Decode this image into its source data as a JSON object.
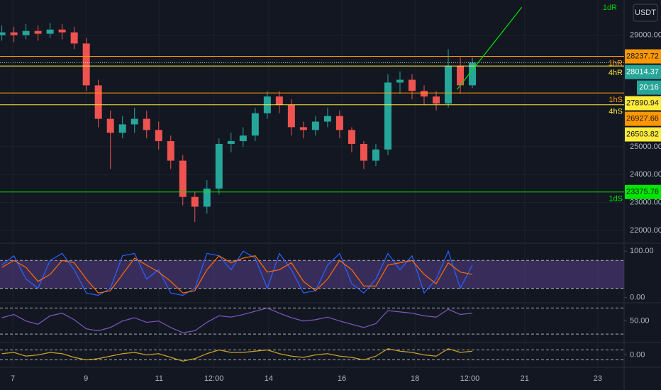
{
  "chart_data": [
    {
      "type": "candlestick",
      "currency": "USDT",
      "top_label": "1dR",
      "countdown": "20:16",
      "x": [
        6.7,
        7.03,
        7.36,
        7.69,
        8.02,
        8.35,
        8.68,
        9.01,
        9.34,
        9.67,
        10,
        10.33,
        10.66,
        10.99,
        11.32,
        11.65,
        11.98,
        12.31,
        12.64,
        12.97,
        13.3,
        13.63,
        13.96,
        14.29,
        14.62,
        14.95,
        15.28,
        15.61,
        15.94,
        16.27,
        16.6,
        16.93,
        17.26,
        17.59,
        17.92,
        18.25,
        18.58,
        18.91,
        19.24,
        19.57
      ],
      "open": [
        29000,
        29100,
        29000,
        29150,
        29050,
        29200,
        29100,
        28700,
        27200,
        26000,
        25500,
        25800,
        26000,
        25600,
        25200,
        24500,
        23200,
        22850,
        23500,
        25100,
        25200,
        25400,
        26200,
        26800,
        26500,
        25700,
        25600,
        25900,
        26100,
        25600,
        25100,
        24500,
        24900,
        27300,
        27400,
        27000,
        26800,
        26550,
        27900,
        27200
      ],
      "high": [
        29350,
        29300,
        29400,
        29350,
        29450,
        29400,
        29300,
        28900,
        27400,
        26300,
        26100,
        26400,
        26300,
        25900,
        25400,
        24700,
        23400,
        23800,
        25300,
        25500,
        25700,
        26400,
        27000,
        27000,
        26700,
        25900,
        26100,
        26400,
        26300,
        25700,
        25200,
        25100,
        27600,
        27700,
        27600,
        27200,
        27000,
        28500,
        28200,
        28200
      ],
      "low": [
        28800,
        28750,
        28850,
        28800,
        28900,
        28850,
        28500,
        27000,
        25700,
        24200,
        25300,
        25500,
        25300,
        24900,
        24200,
        22900,
        22300,
        22600,
        23300,
        24800,
        25000,
        25200,
        26000,
        26200,
        25400,
        25300,
        25400,
        25700,
        25300,
        24800,
        24200,
        24300,
        24700,
        26900,
        26700,
        26500,
        26300,
        26400,
        26900,
        27100
      ],
      "close": [
        29100,
        29000,
        29150,
        29050,
        29200,
        29100,
        28700,
        27200,
        26000,
        25500,
        25800,
        26000,
        25600,
        25200,
        24500,
        23200,
        22850,
        23500,
        25100,
        25200,
        25400,
        26200,
        26800,
        26500,
        25700,
        25600,
        25900,
        26100,
        25600,
        25100,
        24500,
        24900,
        27300,
        27400,
        27000,
        26800,
        26550,
        27900,
        27200,
        28014.37
      ],
      "up_color": "#26a69a",
      "down_color": "#ef5350",
      "xlim": [
        6.65,
        23.72
      ],
      "xticks": [
        7,
        9,
        11,
        {
          "value": 12.5,
          "label": "12:00"
        },
        14,
        16,
        18,
        {
          "value": 19.5,
          "label": "12:00"
        },
        21,
        23
      ],
      "ylim": [
        21540,
        30260
      ],
      "yticks": [
        {
          "value": 22000,
          "label": "22000.00"
        },
        {
          "value": 23000,
          "label": "23000.00"
        },
        {
          "value": 24000,
          "label": "24000.00"
        },
        {
          "value": 25000,
          "label": "25000.00"
        },
        {
          "value": 29000,
          "label": "29000.00"
        }
      ],
      "grid": true,
      "current_price": {
        "value": 28014.37,
        "label": "28014.37",
        "color": "#26a69a"
      },
      "levels": [
        {
          "name": "1hR",
          "value": 28237.72,
          "label": "28237.72",
          "color": "#ff9800"
        },
        {
          "name": "4hR",
          "value": 27890.94,
          "label": "27890.94",
          "color": "#ffeb3b"
        },
        {
          "name": "1hS",
          "value": 26927.66,
          "label": "26927.66",
          "color": "#ff9800"
        },
        {
          "name": "4hS",
          "value": 26503.82,
          "label": "26503.82",
          "color": "#ffeb3b"
        },
        {
          "name": "1dS",
          "value": 23375.76,
          "label": "23375.76",
          "color": "#00e600"
        }
      ],
      "trendline": {
        "x": [
          19.15,
          20.92
        ],
        "values": [
          27050,
          30000
        ],
        "color": "#00e600"
      }
    },
    {
      "type": "line",
      "ylim": [
        -11,
        117
      ],
      "yticks": [
        {
          "value": 0,
          "label": "0.00"
        },
        {
          "value": 100,
          "label": "100.00"
        }
      ],
      "levels": [
        80,
        20
      ],
      "band_color": "#7e57c2",
      "x": [
        6.7,
        7.03,
        7.36,
        7.69,
        8.02,
        8.35,
        8.68,
        9.01,
        9.34,
        9.67,
        10,
        10.33,
        10.66,
        10.99,
        11.32,
        11.65,
        11.98,
        12.31,
        12.64,
        12.97,
        13.3,
        13.63,
        13.96,
        14.29,
        14.62,
        14.95,
        15.28,
        15.61,
        15.94,
        16.27,
        16.6,
        16.93,
        17.26,
        17.59,
        17.92,
        18.25,
        18.58,
        18.91,
        19.24,
        19.57
      ],
      "series": [
        {
          "color": "#2962ff",
          "values": [
            70,
            90,
            40,
            20,
            80,
            95,
            60,
            10,
            5,
            20,
            90,
            95,
            40,
            60,
            10,
            5,
            20,
            95,
            90,
            60,
            100,
            85,
            20,
            95,
            60,
            10,
            15,
            70,
            95,
            30,
            10,
            40,
            95,
            60,
            90,
            10,
            40,
            100,
            20,
            70
          ]
        },
        {
          "color": "#ff6d00",
          "values": [
            65,
            80,
            65,
            35,
            50,
            80,
            75,
            40,
            10,
            15,
            50,
            85,
            70,
            55,
            35,
            10,
            15,
            60,
            90,
            75,
            85,
            90,
            55,
            60,
            75,
            35,
            15,
            40,
            80,
            60,
            25,
            25,
            70,
            75,
            80,
            50,
            30,
            75,
            55,
            50
          ]
        }
      ]
    },
    {
      "type": "line",
      "ylim": [
        17,
        78
      ],
      "yticks": [
        {
          "value": 50,
          "label": "50.00"
        }
      ],
      "levels": [
        70,
        30
      ],
      "x": [
        6.7,
        7.03,
        7.36,
        7.69,
        8.02,
        8.35,
        8.68,
        9.01,
        9.34,
        9.67,
        10,
        10.33,
        10.66,
        10.99,
        11.32,
        11.65,
        11.98,
        12.31,
        12.64,
        12.97,
        13.3,
        13.63,
        13.96,
        14.29,
        14.62,
        14.95,
        15.28,
        15.61,
        15.94,
        16.27,
        16.6,
        16.93,
        17.26,
        17.59,
        17.92,
        18.25,
        18.58,
        18.91,
        19.24,
        19.57
      ],
      "series": [
        {
          "color": "#7e57c2",
          "values": [
            55,
            60,
            50,
            45,
            58,
            62,
            52,
            38,
            35,
            40,
            50,
            55,
            48,
            50,
            40,
            32,
            35,
            48,
            58,
            56,
            60,
            65,
            70,
            62,
            55,
            50,
            52,
            56,
            50,
            45,
            40,
            46,
            66,
            64,
            62,
            58,
            56,
            68,
            60,
            62
          ]
        }
      ]
    },
    {
      "type": "line",
      "ylim": [
        -1,
        1
      ],
      "yticks": [
        {
          "value": 0,
          "label": "0.00"
        }
      ],
      "levels": [
        0.4,
        -0.4
      ],
      "x": [
        6.7,
        7.03,
        7.36,
        7.69,
        8.02,
        8.35,
        8.68,
        9.01,
        9.34,
        9.67,
        10,
        10.33,
        10.66,
        10.99,
        11.32,
        11.65,
        11.98,
        12.31,
        12.64,
        12.97,
        13.3,
        13.63,
        13.96,
        14.29,
        14.62,
        14.95,
        15.28,
        15.61,
        15.94,
        16.27,
        16.6,
        16.93,
        17.26,
        17.59,
        17.92,
        18.25,
        18.58,
        18.91,
        19.24,
        19.57
      ],
      "series": [
        {
          "color": "#c9a227",
          "values": [
            0.1,
            0.2,
            -0.1,
            0,
            0.2,
            0.1,
            -0.2,
            -0.4,
            -0.3,
            -0.1,
            0.1,
            0.2,
            0,
            0.1,
            -0.2,
            -0.5,
            -0.3,
            0.1,
            0.4,
            0.2,
            0.2,
            0.3,
            0.4,
            0.1,
            -0.1,
            -0.2,
            0,
            0.1,
            -0.1,
            -0.2,
            -0.4,
            -0.1,
            0.5,
            0.3,
            0.2,
            0,
            -0.1,
            0.5,
            0.2,
            0.3
          ]
        }
      ]
    }
  ]
}
